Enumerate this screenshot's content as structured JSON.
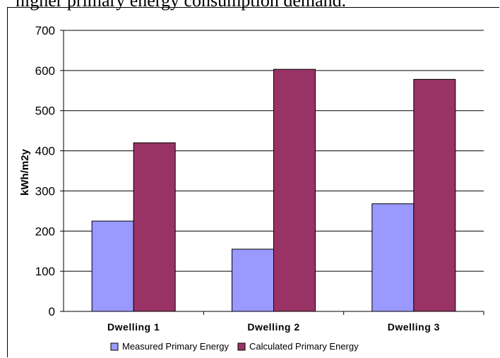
{
  "header_text": "higher primary energy consumption demand.",
  "chart_data": {
    "type": "bar",
    "categories": [
      "Dwelling 1",
      "Dwelling 2",
      "Dwelling 3"
    ],
    "series": [
      {
        "name": "Measured Primary Energy",
        "values": [
          225,
          155,
          268
        ],
        "color": "#9999ff"
      },
      {
        "name": "Calculated Primary Energy",
        "values": [
          420,
          603,
          578
        ],
        "color": "#993366"
      }
    ],
    "ylabel": "kWh/m2y",
    "ylim": [
      0,
      700
    ],
    "yticks": [
      "0",
      "100",
      "200",
      "300",
      "400",
      "500",
      "600",
      "700"
    ],
    "grid": true,
    "legend_position": "bottom"
  }
}
